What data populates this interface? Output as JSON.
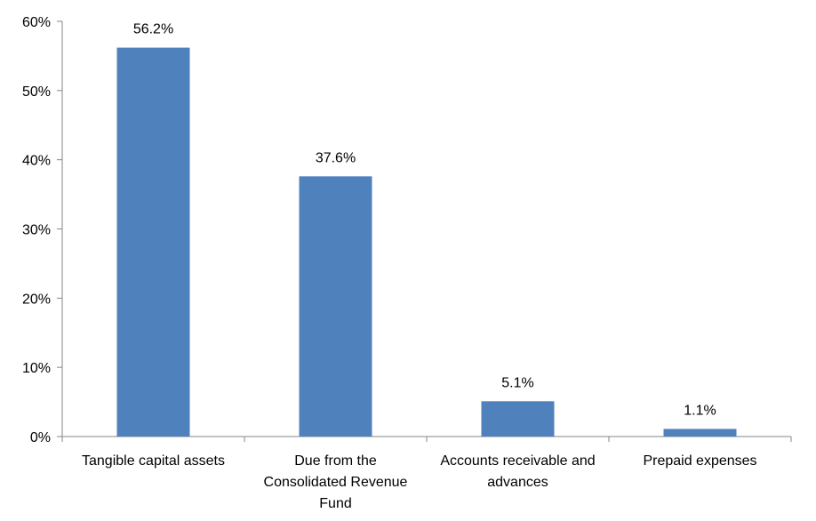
{
  "chart_data": {
    "type": "bar",
    "title": "",
    "xlabel": "",
    "ylabel": "",
    "categories": [
      [
        "Tangible capital assets"
      ],
      [
        "Due from the",
        "Consolidated Revenue",
        "Fund"
      ],
      [
        "Accounts receivable and",
        "advances"
      ],
      [
        "Prepaid expenses"
      ]
    ],
    "values": [
      56.2,
      37.6,
      5.1,
      1.1
    ],
    "data_labels": [
      "56.2%",
      "37.6%",
      "5.1%",
      "1.1%"
    ],
    "ylim": [
      0,
      60
    ],
    "yticks": [
      0,
      10,
      20,
      30,
      40,
      50,
      60
    ],
    "ytick_labels": [
      "0%",
      "10%",
      "20%",
      "30%",
      "40%",
      "50%",
      "60%"
    ],
    "grid": false,
    "legend": "none",
    "bar_color": "#4F81BD",
    "axis_color": "#868686"
  }
}
